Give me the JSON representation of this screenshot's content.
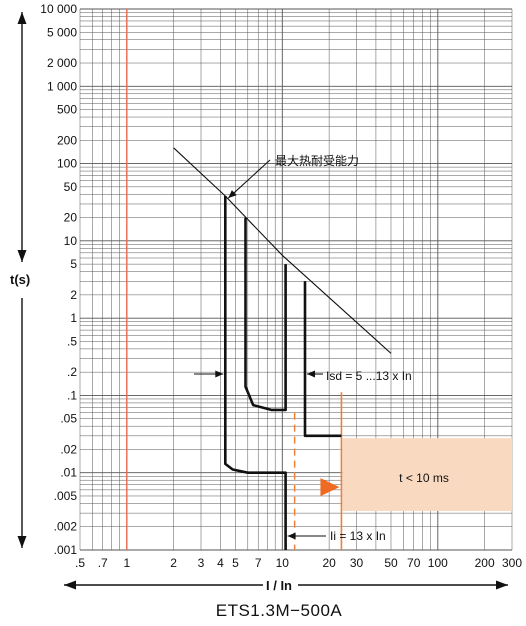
{
  "chart_data": {
    "type": "line",
    "title": "ETS1.3M−500A",
    "xlabel": "I / In",
    "ylabel": "t(s)",
    "x_scale": "log",
    "y_scale": "log",
    "xlim": [
      0.5,
      300
    ],
    "ylim": [
      0.001,
      10000
    ],
    "grid": true,
    "x_tick_values": [
      0.5,
      0.7,
      1,
      2,
      3,
      4,
      5,
      7,
      10,
      20,
      30,
      50,
      70,
      100,
      200,
      300
    ],
    "x_tick_labels": [
      ".5",
      ".7",
      "1",
      "2",
      "3",
      "4",
      "5",
      "7",
      "10",
      "20",
      "30",
      "50",
      "70",
      "100",
      "200",
      "300"
    ],
    "y_tick_values": [
      0.001,
      0.002,
      0.005,
      0.01,
      0.02,
      0.05,
      0.1,
      0.2,
      0.5,
      1,
      2,
      5,
      10,
      20,
      50,
      100,
      200,
      500,
      1000,
      2000,
      5000,
      10000
    ],
    "y_tick_labels": [
      ".001",
      ".002",
      ".005",
      ".01",
      ".02",
      ".05",
      ".1",
      ".2",
      ".5",
      "1",
      "2",
      "5",
      "10",
      "20",
      "50",
      "100",
      "200",
      "500",
      "1 000",
      "2 000",
      "5 000",
      "10 000"
    ],
    "reference_line_x": 1,
    "series": [
      {
        "values": [
          [
            2,
            160
          ],
          [
            4.3,
            38
          ],
          [
            10,
            6.5
          ],
          [
            50,
            0.35
          ]
        ]
      },
      {
        "values": [
          [
            4.3,
            38
          ],
          [
            4.3,
            0.013
          ],
          [
            4.8,
            0.011
          ],
          [
            6,
            0.01
          ],
          [
            10.5,
            0.01
          ],
          [
            10.5,
            0.001
          ]
        ]
      },
      {
        "values": [
          [
            5.8,
            20
          ],
          [
            5.8,
            0.13
          ],
          [
            6.5,
            0.075
          ],
          [
            8.5,
            0.065
          ],
          [
            10.5,
            0.065
          ],
          [
            10.5,
            5
          ]
        ]
      },
      {
        "values": [
          [
            14,
            3
          ],
          [
            14,
            0.03
          ],
          [
            24,
            0.03
          ]
        ]
      }
    ],
    "dashed_line_x": 12,
    "instantaneous_line_x": 24,
    "instantaneous_line_range": [
      0.001,
      0.11
    ],
    "trip_zone": {
      "x": [
        24,
        300
      ],
      "y": [
        0.0032,
        0.028
      ],
      "label": "t < 10 ms"
    },
    "annotations": {
      "withstand": "最大热耐受能力",
      "isd": "Isd = 5 ...13 x In",
      "ii": "Ii = 13 x In"
    },
    "colors": {
      "curve": "#111111",
      "grid": "#555555",
      "reference": "#f06a4d",
      "instantaneous": "#ef7f3a",
      "zone": "#f9dac1",
      "marker": "#ef6a23"
    }
  }
}
